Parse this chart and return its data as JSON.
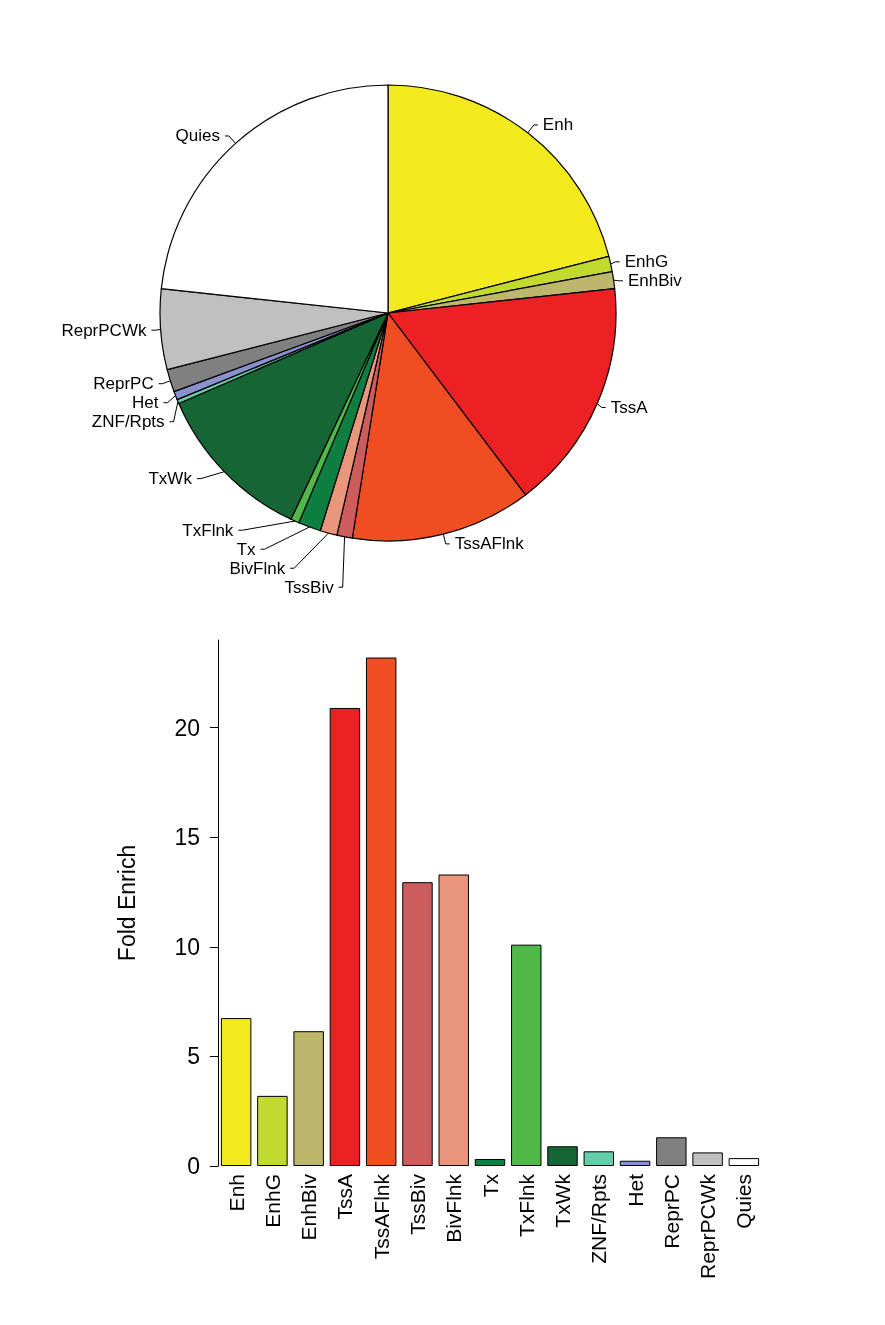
{
  "chart_data": [
    {
      "type": "pie",
      "categories": [
        "Enh",
        "EnhG",
        "EnhBiv",
        "TssA",
        "TssAFlnk",
        "TssBiv",
        "BivFlnk",
        "Tx",
        "TxFlnk",
        "TxWk",
        "ZNF/Rpts",
        "Het",
        "ReprPC",
        "ReprPCWk",
        "Quies"
      ],
      "values": [
        21.0,
        1.1,
        1.2,
        16.4,
        12.8,
        1.1,
        1.2,
        1.6,
        0.6,
        11.5,
        0.3,
        0.6,
        1.6,
        5.7,
        23.3
      ],
      "colors": [
        "#f2ea1c",
        "#c2d92f",
        "#bdb76b",
        "#ed2024",
        "#f04d22",
        "#cd5c5c",
        "#e9967a",
        "#0e7f41",
        "#4fb848",
        "#166534",
        "#66cdaa",
        "#8a91d0",
        "#808080",
        "#c0c0c0",
        "#ffffff"
      ]
    },
    {
      "type": "bar",
      "ylabel": "Fold Enrich",
      "categories": [
        "Enh",
        "EnhG",
        "EnhBiv",
        "TssA",
        "TssAFlnk",
        "TssBiv",
        "BivFlnk",
        "Tx",
        "TxFlnk",
        "TxWk",
        "ZNF/Rpts",
        "Het",
        "ReprPC",
        "ReprPCWk",
        "Quies"
      ],
      "values": [
        6.75,
        3.2,
        6.15,
        20.9,
        23.2,
        12.95,
        13.3,
        0.32,
        10.1,
        0.9,
        0.67,
        0.24,
        1.31,
        0.62,
        0.36
      ],
      "colors": [
        "#f2ea1c",
        "#c2d92f",
        "#bdb76b",
        "#ed2024",
        "#f04d22",
        "#cd5c5c",
        "#e9967a",
        "#0e7f41",
        "#4fb848",
        "#166534",
        "#66cdaa",
        "#8a91d0",
        "#808080",
        "#c0c0c0",
        "#ffffff"
      ],
      "ylim": [
        0,
        24
      ],
      "yticks": [
        0,
        5,
        10,
        15,
        20
      ],
      "grid": false
    }
  ]
}
